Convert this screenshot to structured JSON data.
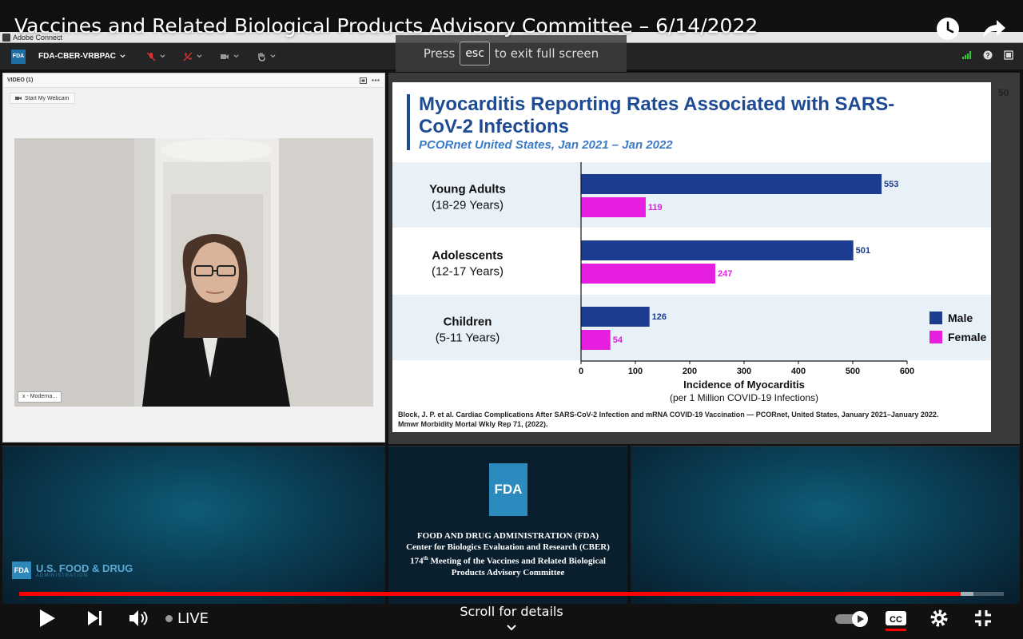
{
  "youtube": {
    "title": "Vaccines and Related Biological Products Advisory Committee – 6/14/2022",
    "live_label": "LIVE",
    "scroll_hint": "Scroll for details",
    "progress_fraction": 0.956
  },
  "adobe_connect": {
    "window_title": "Adobe Connect",
    "badge": "FDA",
    "room_name": "FDA-CBER-VRBPAC",
    "fullscreen_hint_before": "Press",
    "fullscreen_hint_key": "esc",
    "fullscreen_hint_after": "to exit full screen"
  },
  "video_pod": {
    "header": "VIDEO (1)",
    "webcam_button": "Start My Webcam",
    "participant_tag": "x - Moderna..."
  },
  "slide": {
    "number": "50",
    "title": "Myocarditis Reporting Rates Associated with SARS-CoV-2 Infections",
    "subtitle": "PCORnet United States, Jan 2021 – Jan 2022",
    "citation": "Block, J. P. et al. Cardiac Complications After SARS-CoV-2 Infection and mRNA COVID-19 Vaccination — PCORnet, United States, January 2021–January 2022. Mmwr Morbidity Mortal Wkly Rep 71, (2022)."
  },
  "chart_data": {
    "type": "bar",
    "orientation": "horizontal",
    "categories": [
      {
        "name": "Young Adults",
        "range": "(18-29 Years)"
      },
      {
        "name": "Adolescents",
        "range": "(12-17 Years)"
      },
      {
        "name": "Children",
        "range": "(5-11 Years)"
      }
    ],
    "series": [
      {
        "name": "Male",
        "color": "#1b3c8f",
        "values": [
          553,
          501,
          126
        ]
      },
      {
        "name": "Female",
        "color": "#e51ee0",
        "values": [
          119,
          247,
          54
        ]
      }
    ],
    "xlabel": "Incidence of Myocarditis",
    "xlabel_sub": "(per 1 Million COVID-19 Infections)",
    "xlim": [
      0,
      600
    ],
    "xticks": [
      "0",
      "100",
      "200",
      "300",
      "400",
      "500",
      "600"
    ],
    "legend_position": "right",
    "band_color": "#e8f0f8"
  },
  "fda_panel": {
    "left_logo_box": "FDA",
    "left_logo_text": "U.S. FOOD & DRUG",
    "left_logo_sub": "ADMINISTRATION",
    "mid_logo": "FDA",
    "lines": [
      "FOOD AND DRUG ADMINISTRATION (FDA)",
      "Center for Biologics Evaluation and Research (CBER)",
      "174th Meeting of the Vaccines and Related Biological",
      "Products Advisory Committee"
    ]
  }
}
